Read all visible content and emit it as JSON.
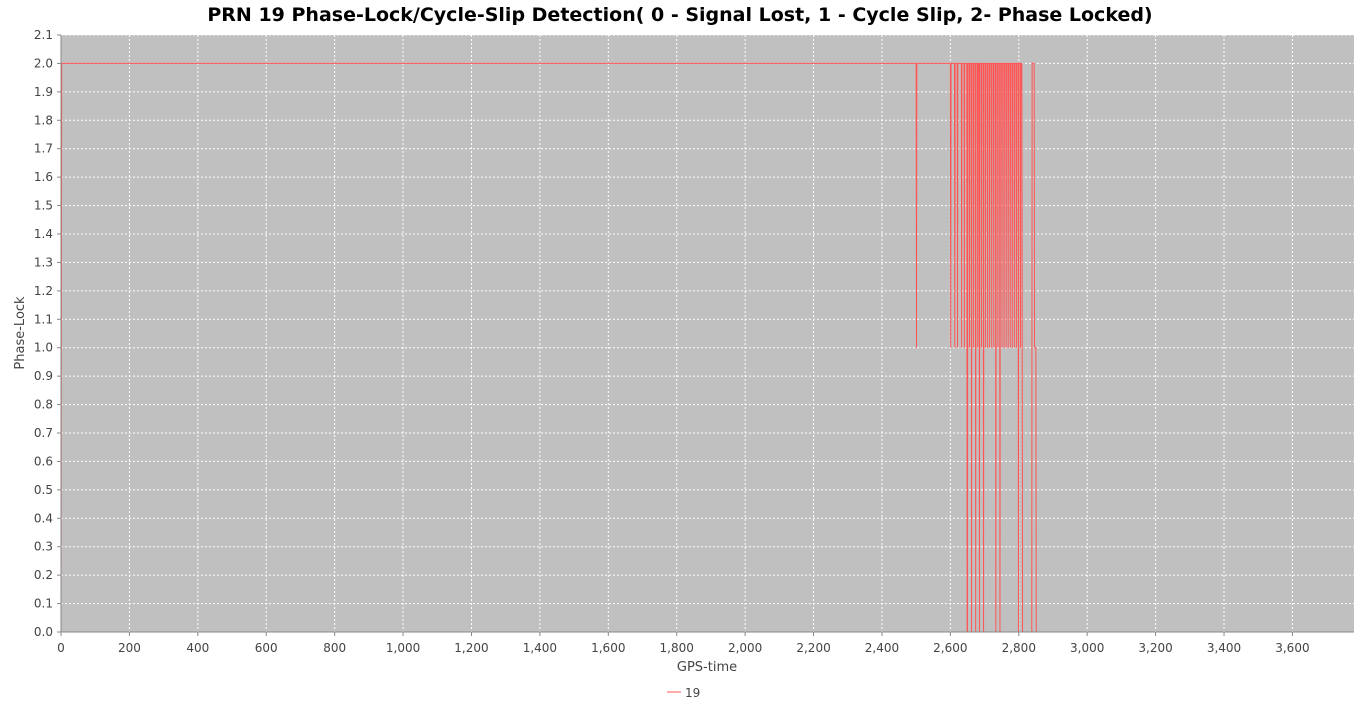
{
  "chart_data": {
    "type": "line",
    "title": "PRN 19 Phase-Lock/Cycle-Slip Detection( 0 - Signal Lost, 1 - Cycle Slip, 2- Phase Locked)",
    "xlabel": "GPS-time",
    "ylabel": "Phase-Lock",
    "xlim": [
      0,
      3780
    ],
    "ylim": [
      0,
      2.1
    ],
    "x_ticks": [
      0,
      200,
      400,
      600,
      800,
      1000,
      1200,
      1400,
      1600,
      1800,
      2000,
      2200,
      2400,
      2600,
      2800,
      3000,
      3200,
      3400,
      3600
    ],
    "x_tick_labels": [
      "0",
      "200",
      "400",
      "600",
      "800",
      "1,000",
      "1,200",
      "1,400",
      "1,600",
      "1,800",
      "2,000",
      "2,200",
      "2,400",
      "2,600",
      "2,800",
      "3,000",
      "3,200",
      "3,400",
      "3,600"
    ],
    "y_ticks": [
      0,
      0.1,
      0.2,
      0.3,
      0.4,
      0.5,
      0.6,
      0.7,
      0.8,
      0.9,
      1.0,
      1.1,
      1.2,
      1.3,
      1.4,
      1.5,
      1.6,
      1.7,
      1.8,
      1.9,
      2.0,
      2.1
    ],
    "y_tick_labels": [
      "0.0",
      "0.1",
      "0.2",
      "0.3",
      "0.4",
      "0.5",
      "0.6",
      "0.7",
      "0.8",
      "0.9",
      "1.0",
      "1.1",
      "1.2",
      "1.3",
      "1.4",
      "1.5",
      "1.6",
      "1.7",
      "1.8",
      "1.9",
      "2.0",
      "2.1"
    ],
    "grid": true,
    "legend_position": "bottom-center",
    "series": [
      {
        "name": "19",
        "color": "#ff5555",
        "points": [
          [
            0,
            0
          ],
          [
            2,
            2
          ],
          [
            2500,
            2
          ],
          [
            2501,
            1
          ],
          [
            2502,
            2
          ],
          [
            2600,
            2
          ],
          [
            2601,
            1
          ],
          [
            2602,
            2
          ],
          [
            2612,
            2
          ],
          [
            2613,
            1
          ],
          [
            2614,
            2
          ],
          [
            2620,
            2
          ],
          [
            2621,
            1
          ],
          [
            2622,
            2
          ],
          [
            2632,
            2
          ],
          [
            2633,
            1
          ],
          [
            2634,
            2
          ],
          [
            2640,
            2
          ],
          [
            2641,
            1
          ],
          [
            2642,
            2
          ],
          [
            2648,
            2
          ],
          [
            2649,
            0
          ],
          [
            2650,
            0
          ],
          [
            2651,
            2
          ],
          [
            2655,
            2
          ],
          [
            2656,
            1
          ],
          [
            2657,
            2
          ],
          [
            2661,
            2
          ],
          [
            2662,
            0
          ],
          [
            2663,
            2
          ],
          [
            2667,
            2
          ],
          [
            2668,
            1
          ],
          [
            2669,
            2
          ],
          [
            2673,
            2
          ],
          [
            2674,
            0
          ],
          [
            2675,
            2
          ],
          [
            2679,
            2
          ],
          [
            2680,
            1
          ],
          [
            2681,
            2
          ],
          [
            2684,
            2
          ],
          [
            2685,
            0
          ],
          [
            2686,
            2
          ],
          [
            2690,
            2
          ],
          [
            2691,
            1
          ],
          [
            2692,
            2
          ],
          [
            2696,
            2
          ],
          [
            2697,
            0
          ],
          [
            2698,
            2
          ],
          [
            2702,
            2
          ],
          [
            2703,
            1
          ],
          [
            2704,
            2
          ],
          [
            2708,
            2
          ],
          [
            2709,
            1
          ],
          [
            2710,
            2
          ],
          [
            2714,
            2
          ],
          [
            2715,
            1
          ],
          [
            2716,
            2
          ],
          [
            2720,
            2
          ],
          [
            2721,
            1
          ],
          [
            2722,
            2
          ],
          [
            2726,
            2
          ],
          [
            2727,
            1
          ],
          [
            2728,
            2
          ],
          [
            2732,
            2
          ],
          [
            2733,
            0
          ],
          [
            2734,
            2
          ],
          [
            2738,
            2
          ],
          [
            2739,
            1
          ],
          [
            2740,
            2
          ],
          [
            2744,
            2
          ],
          [
            2745,
            0
          ],
          [
            2746,
            2
          ],
          [
            2750,
            2
          ],
          [
            2751,
            1
          ],
          [
            2752,
            2
          ],
          [
            2756,
            2
          ],
          [
            2757,
            1
          ],
          [
            2758,
            2
          ],
          [
            2762,
            2
          ],
          [
            2763,
            1
          ],
          [
            2764,
            2
          ],
          [
            2768,
            2
          ],
          [
            2769,
            1
          ],
          [
            2770,
            2
          ],
          [
            2774,
            2
          ],
          [
            2775,
            1
          ],
          [
            2776,
            2
          ],
          [
            2780,
            2
          ],
          [
            2781,
            1
          ],
          [
            2782,
            2
          ],
          [
            2786,
            2
          ],
          [
            2787,
            1
          ],
          [
            2788,
            2
          ],
          [
            2792,
            2
          ],
          [
            2793,
            1
          ],
          [
            2794,
            2
          ],
          [
            2798,
            2
          ],
          [
            2799,
            0
          ],
          [
            2800,
            2
          ],
          [
            2804,
            2
          ],
          [
            2805,
            1
          ],
          [
            2806,
            2
          ],
          [
            2809,
            2
          ],
          [
            2810,
            1
          ],
          [
            2811,
            0
          ],
          [
            2838,
            0
          ],
          [
            2839,
            2
          ],
          [
            2845,
            2
          ],
          [
            2846,
            1
          ],
          [
            2850,
            1
          ],
          [
            2851,
            0
          ],
          [
            3600,
            0
          ]
        ]
      }
    ]
  }
}
